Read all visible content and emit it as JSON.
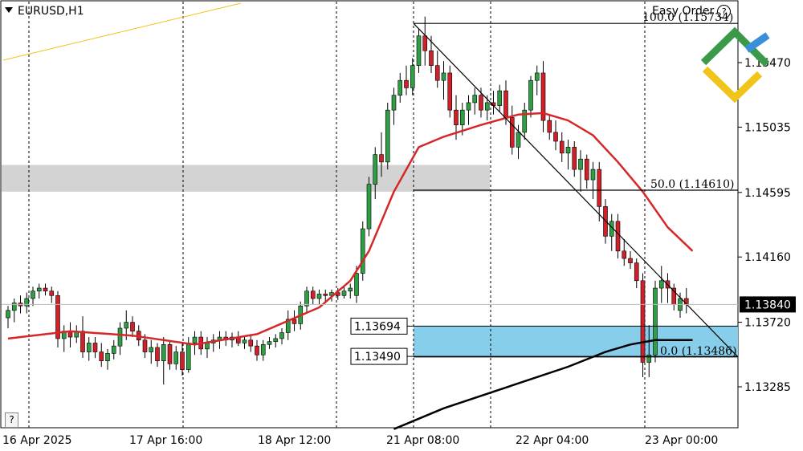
{
  "header": {
    "symbol_label": "EURUSD,H1",
    "easy_order_label": "Easy Order",
    "easy_order_help": "?"
  },
  "help_button_label": "?",
  "colors": {
    "bull": "#2f9e44",
    "bear": "#d0202a",
    "ma_fast": "#d62728",
    "ma_slow": "#000000",
    "zone_gray": "#d3d3d3",
    "zone_blue": "#87ceeb",
    "trendline_yellow": "#f0c419",
    "logo_green": "#3a9a4a",
    "logo_blue": "#3a8fd9",
    "logo_yellow": "#f0c419"
  },
  "chart_data": {
    "type": "candlestick",
    "symbol": "EURUSD",
    "timeframe": "H1",
    "ylim": [
      1.13,
      1.159
    ],
    "y_ticks": [
      "1.15470",
      "1.15035",
      "1.14595",
      "1.14160",
      "1.13720",
      "1.13285"
    ],
    "x_ticks": [
      "16 Apr 2025",
      "17 Apr 16:00",
      "18 Apr 12:00",
      "21 Apr 08:00",
      "22 Apr 04:00",
      "23 Apr 00:00"
    ],
    "current_price": "1.13840",
    "levels": [
      {
        "label": "1.13694",
        "price": 1.13694
      },
      {
        "label": "1.13490",
        "price": 1.1349
      }
    ],
    "fibonacci": [
      {
        "label": "100.0 (1.15734)",
        "price": 1.15734
      },
      {
        "label": "50.0 (1.14610)",
        "price": 1.1461
      },
      {
        "label": "0.0 (1.13486)",
        "price": 1.13486
      }
    ],
    "candles": [
      [
        1.1375,
        1.1383,
        1.1368,
        1.138
      ],
      [
        1.138,
        1.1388,
        1.1372,
        1.1385
      ],
      [
        1.1385,
        1.139,
        1.1378,
        1.1383
      ],
      [
        1.1383,
        1.1392,
        1.1378,
        1.1388
      ],
      [
        1.1388,
        1.1396,
        1.1383,
        1.1393
      ],
      [
        1.1393,
        1.1398,
        1.1388,
        1.1395
      ],
      [
        1.1395,
        1.1398,
        1.139,
        1.1393
      ],
      [
        1.1393,
        1.1396,
        1.1385,
        1.139
      ],
      [
        1.139,
        1.1393,
        1.1355,
        1.1361
      ],
      [
        1.1361,
        1.137,
        1.1352,
        1.1366
      ],
      [
        1.1366,
        1.1372,
        1.1355,
        1.1362
      ],
      [
        1.1362,
        1.137,
        1.1358,
        1.1366
      ],
      [
        1.1366,
        1.1376,
        1.1348,
        1.1352
      ],
      [
        1.1352,
        1.1362,
        1.1346,
        1.1358
      ],
      [
        1.1358,
        1.1362,
        1.1348,
        1.1352
      ],
      [
        1.1352,
        1.1358,
        1.1342,
        1.1346
      ],
      [
        1.1346,
        1.1354,
        1.134,
        1.1351
      ],
      [
        1.1351,
        1.136,
        1.1347,
        1.1356
      ],
      [
        1.1356,
        1.1372,
        1.135,
        1.1368
      ],
      [
        1.1368,
        1.138,
        1.136,
        1.1372
      ],
      [
        1.1372,
        1.1376,
        1.1362,
        1.1366
      ],
      [
        1.1366,
        1.137,
        1.1356,
        1.136
      ],
      [
        1.136,
        1.1364,
        1.1348,
        1.1352
      ],
      [
        1.1352,
        1.136,
        1.1344,
        1.1355
      ],
      [
        1.1355,
        1.1358,
        1.1342,
        1.1346
      ],
      [
        1.1346,
        1.1362,
        1.133,
        1.1357
      ],
      [
        1.1357,
        1.136,
        1.134,
        1.1344
      ],
      [
        1.1344,
        1.1356,
        1.134,
        1.1352
      ],
      [
        1.1352,
        1.1358,
        1.1336,
        1.134
      ],
      [
        1.134,
        1.1362,
        1.1338,
        1.1358
      ],
      [
        1.1358,
        1.1366,
        1.135,
        1.1362
      ],
      [
        1.1362,
        1.1366,
        1.135,
        1.1354
      ],
      [
        1.1354,
        1.1362,
        1.1348,
        1.1358
      ],
      [
        1.1358,
        1.1364,
        1.1352,
        1.136
      ],
      [
        1.136,
        1.1366,
        1.1354,
        1.1362
      ],
      [
        1.1362,
        1.1366,
        1.1356,
        1.136
      ],
      [
        1.136,
        1.1365,
        1.1355,
        1.1362
      ],
      [
        1.1362,
        1.1366,
        1.1356,
        1.1358
      ],
      [
        1.1358,
        1.1362,
        1.1354,
        1.136
      ],
      [
        1.136,
        1.1364,
        1.1352,
        1.1356
      ],
      [
        1.1356,
        1.136,
        1.1346,
        1.135
      ],
      [
        1.135,
        1.136,
        1.1346,
        1.1357
      ],
      [
        1.1357,
        1.1362,
        1.1354,
        1.1359
      ],
      [
        1.1359,
        1.1364,
        1.1355,
        1.1361
      ],
      [
        1.1361,
        1.1368,
        1.1357,
        1.1365
      ],
      [
        1.1365,
        1.138,
        1.136,
        1.1374
      ],
      [
        1.1374,
        1.138,
        1.1366,
        1.1371
      ],
      [
        1.1371,
        1.1386,
        1.1367,
        1.1383
      ],
      [
        1.1383,
        1.1396,
        1.1378,
        1.1393
      ],
      [
        1.1393,
        1.1396,
        1.1384,
        1.1388
      ],
      [
        1.1388,
        1.1394,
        1.1384,
        1.1391
      ],
      [
        1.1391,
        1.1394,
        1.1386,
        1.139
      ],
      [
        1.139,
        1.1394,
        1.1386,
        1.1392
      ],
      [
        1.1392,
        1.1395,
        1.1387,
        1.139
      ],
      [
        1.139,
        1.1396,
        1.1388,
        1.1393
      ],
      [
        1.1393,
        1.1398,
        1.1388,
        1.1395
      ],
      [
        1.139,
        1.141,
        1.1385,
        1.1405
      ],
      [
        1.1405,
        1.144,
        1.14,
        1.1435
      ],
      [
        1.1435,
        1.147,
        1.143,
        1.1465
      ],
      [
        1.1465,
        1.149,
        1.1455,
        1.1485
      ],
      [
        1.1485,
        1.15,
        1.147,
        1.148
      ],
      [
        1.148,
        1.152,
        1.1475,
        1.1515
      ],
      [
        1.1515,
        1.153,
        1.1505,
        1.1525
      ],
      [
        1.1525,
        1.154,
        1.152,
        1.1535
      ],
      [
        1.1535,
        1.1545,
        1.1525,
        1.153
      ],
      [
        1.153,
        1.155,
        1.1525,
        1.1545
      ],
      [
        1.1545,
        1.157,
        1.154,
        1.1565
      ],
      [
        1.1565,
        1.1578,
        1.1545,
        1.1555
      ],
      [
        1.1555,
        1.1565,
        1.154,
        1.1545
      ],
      [
        1.1545,
        1.1555,
        1.153,
        1.1535
      ],
      [
        1.1535,
        1.1548,
        1.1522,
        1.154
      ],
      [
        1.154,
        1.1545,
        1.151,
        1.1515
      ],
      [
        1.1515,
        1.1525,
        1.1495,
        1.1505
      ],
      [
        1.1505,
        1.152,
        1.1498,
        1.1515
      ],
      [
        1.1515,
        1.1525,
        1.1505,
        1.152
      ],
      [
        1.152,
        1.153,
        1.1512,
        1.1525
      ],
      [
        1.1525,
        1.153,
        1.151,
        1.1515
      ],
      [
        1.1515,
        1.1525,
        1.1508,
        1.152
      ],
      [
        1.152,
        1.1528,
        1.1512,
        1.1518
      ],
      [
        1.1518,
        1.1532,
        1.1514,
        1.1528
      ],
      [
        1.1528,
        1.1535,
        1.1505,
        1.151
      ],
      [
        1.151,
        1.1518,
        1.1485,
        1.149
      ],
      [
        1.149,
        1.1505,
        1.1482,
        1.15
      ],
      [
        1.15,
        1.152,
        1.1495,
        1.1515
      ],
      [
        1.1515,
        1.1538,
        1.151,
        1.1535
      ],
      [
        1.1535,
        1.1545,
        1.1525,
        1.154
      ],
      [
        1.154,
        1.1548,
        1.15,
        1.1508
      ],
      [
        1.1508,
        1.1512,
        1.1495,
        1.15
      ],
      [
        1.15,
        1.1508,
        1.1488,
        1.1494
      ],
      [
        1.1494,
        1.15,
        1.148,
        1.1486
      ],
      [
        1.1486,
        1.1495,
        1.1475,
        1.149
      ],
      [
        1.149,
        1.1494,
        1.147,
        1.1475
      ],
      [
        1.1475,
        1.1488,
        1.146,
        1.1482
      ],
      [
        1.1482,
        1.1485,
        1.1462,
        1.1468
      ],
      [
        1.1468,
        1.148,
        1.1455,
        1.1475
      ],
      [
        1.1475,
        1.148,
        1.144,
        1.145
      ],
      [
        1.145,
        1.1455,
        1.1425,
        1.143
      ],
      [
        1.143,
        1.1445,
        1.142,
        1.144
      ],
      [
        1.144,
        1.1445,
        1.1415,
        1.142
      ],
      [
        1.142,
        1.1428,
        1.141,
        1.1415
      ],
      [
        1.1415,
        1.142,
        1.1408,
        1.1412
      ],
      [
        1.1412,
        1.1415,
        1.1395,
        1.14
      ],
      [
        1.14,
        1.1405,
        1.1335,
        1.1345
      ],
      [
        1.1345,
        1.137,
        1.1335,
        1.135
      ],
      [
        1.135,
        1.14,
        1.1345,
        1.1395
      ],
      [
        1.1395,
        1.141,
        1.1385,
        1.14
      ],
      [
        1.14,
        1.1405,
        1.1385,
        1.1395
      ],
      [
        1.1395,
        1.1398,
        1.138,
        1.1384
      ],
      [
        1.138,
        1.1392,
        1.1375,
        1.1388
      ],
      [
        1.1388,
        1.1395,
        1.1378,
        1.1384
      ]
    ],
    "sma_fast": [
      [
        0,
        1.1361
      ],
      [
        10,
        1.1366
      ],
      [
        20,
        1.1363
      ],
      [
        30,
        1.1357
      ],
      [
        40,
        1.1364
      ],
      [
        50,
        1.1382
      ],
      [
        55,
        1.14
      ],
      [
        58,
        1.142
      ],
      [
        62,
        1.146
      ],
      [
        66,
        1.149
      ],
      [
        70,
        1.1497
      ],
      [
        76,
        1.1505
      ],
      [
        82,
        1.1512
      ],
      [
        86,
        1.1513
      ],
      [
        90,
        1.1508
      ],
      [
        94,
        1.1498
      ],
      [
        98,
        1.148
      ],
      [
        102,
        1.146
      ],
      [
        106,
        1.1436
      ],
      [
        110,
        1.142
      ]
    ],
    "sma_slow": [
      [
        62,
        1.13
      ],
      [
        70,
        1.1314
      ],
      [
        80,
        1.1328
      ],
      [
        90,
        1.1342
      ],
      [
        96,
        1.1352
      ],
      [
        100,
        1.1357
      ],
      [
        104,
        1.136
      ],
      [
        110,
        1.136
      ]
    ]
  }
}
